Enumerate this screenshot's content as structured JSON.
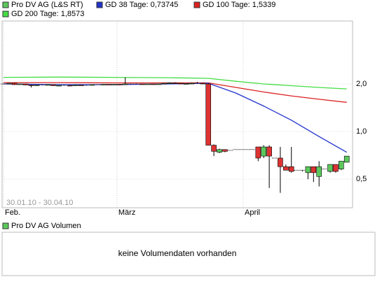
{
  "chart_data": {
    "type": "candlestick",
    "legend": [
      {
        "name": "Pro DV AG (L&S RT)",
        "color": "#5cc85c"
      },
      {
        "name": "GD 38 Tage: 0,73745",
        "color": "#2233cc"
      },
      {
        "name": "GD 100 Tage: 1,5339",
        "color": "#dd2222"
      },
      {
        "name": "GD 200 Tage: 1,8573",
        "color": "#44dd44"
      }
    ],
    "date_range": "30.01.10 - 30.04.10",
    "up_color": "#5cc85c",
    "down_color": "#dd3333",
    "open": [
      2.0,
      2.0,
      2.02,
      1.98,
      2.0,
      1.97,
      1.96,
      1.97,
      1.97,
      1.98,
      1.95,
      1.96,
      1.96,
      1.95,
      1.97,
      1.96,
      1.96,
      1.98,
      1.98,
      1.99,
      1.98,
      1.99,
      1.98,
      2.0,
      2.0,
      2.0,
      1.99,
      2.0,
      1.99,
      2.0,
      2.02,
      2.03,
      2.02,
      2.0,
      2.01,
      2.02,
      2.02,
      2.0,
      0.82,
      0.74,
      0.77,
      0.76,
      0.77,
      0.77,
      0.77,
      0.77,
      0.8,
      0.7,
      0.8,
      0.68,
      0.68,
      0.6,
      0.6,
      0.57,
      0.57,
      0.55,
      0.6,
      0.52,
      0.58,
      0.56,
      0.62,
      0.58,
      0.64
    ],
    "high": [
      2.01,
      2.03,
      2.04,
      2.0,
      2.01,
      1.98,
      1.98,
      1.98,
      1.99,
      1.99,
      1.97,
      1.97,
      1.97,
      1.98,
      1.98,
      1.97,
      1.99,
      1.99,
      2.0,
      1.99,
      2.0,
      2.0,
      2.2,
      2.01,
      2.01,
      2.01,
      2.0,
      2.01,
      2.01,
      2.03,
      2.05,
      2.05,
      2.03,
      2.02,
      2.04,
      2.06,
      2.03,
      2.02,
      0.83,
      0.78,
      0.77,
      0.76,
      0.77,
      0.77,
      0.77,
      0.77,
      0.8,
      0.82,
      0.82,
      0.68,
      0.8,
      0.62,
      0.8,
      0.57,
      0.57,
      0.6,
      0.6,
      0.65,
      0.58,
      0.62,
      0.62,
      0.65,
      0.7
    ],
    "low": [
      1.99,
      1.99,
      1.97,
      1.97,
      1.96,
      1.9,
      1.95,
      1.96,
      1.96,
      1.94,
      1.94,
      1.95,
      1.94,
      1.94,
      1.95,
      1.95,
      1.95,
      1.97,
      1.97,
      1.97,
      1.97,
      1.98,
      1.97,
      1.99,
      1.99,
      1.98,
      1.98,
      1.98,
      1.98,
      1.99,
      2.01,
      2.01,
      1.99,
      1.99,
      2.0,
      2.01,
      2.0,
      0.82,
      0.7,
      0.73,
      0.74,
      0.76,
      0.77,
      0.77,
      0.77,
      0.77,
      0.65,
      0.68,
      0.44,
      0.68,
      0.41,
      0.57,
      0.55,
      0.57,
      0.56,
      0.5,
      0.48,
      0.45,
      0.58,
      0.55,
      0.55,
      0.57,
      0.64
    ],
    "close": [
      2.0,
      2.02,
      1.98,
      2.0,
      1.97,
      1.96,
      1.97,
      1.97,
      1.98,
      1.95,
      1.96,
      1.96,
      1.95,
      1.97,
      1.96,
      1.96,
      1.98,
      1.98,
      1.99,
      1.98,
      1.99,
      1.98,
      2.0,
      2.0,
      2.0,
      1.99,
      2.0,
      1.99,
      2.0,
      2.02,
      2.03,
      2.02,
      2.0,
      2.01,
      2.02,
      2.02,
      2.01,
      0.82,
      0.75,
      0.77,
      0.75,
      0.76,
      0.77,
      0.77,
      0.77,
      0.77,
      0.68,
      0.8,
      0.7,
      0.68,
      0.6,
      0.57,
      0.56,
      0.57,
      0.57,
      0.6,
      0.55,
      0.6,
      0.58,
      0.62,
      0.56,
      0.65,
      0.7
    ],
    "lines": [
      {
        "color": "#44dd44",
        "x": [
          0,
          10,
          20,
          30,
          37,
          42,
          47,
          52,
          57,
          62
        ],
        "values": [
          2.2,
          2.21,
          2.2,
          2.19,
          2.17,
          2.08,
          2.0,
          1.95,
          1.9,
          1.86
        ]
      },
      {
        "color": "#dd2222",
        "x": [
          0,
          10,
          20,
          30,
          37,
          42,
          47,
          52,
          57,
          62
        ],
        "values": [
          2.04,
          2.04,
          2.03,
          2.03,
          2.03,
          1.9,
          1.78,
          1.68,
          1.6,
          1.53
        ]
      },
      {
        "color": "#2233cc",
        "x": [
          0,
          10,
          20,
          30,
          37,
          42,
          47,
          52,
          57,
          62
        ],
        "values": [
          2.0,
          1.98,
          1.98,
          2.0,
          2.02,
          1.75,
          1.45,
          1.18,
          0.93,
          0.74
        ]
      }
    ],
    "log_scale": true,
    "ylim": [
      0.33,
      5.0
    ],
    "yticks": [
      {
        "value": 0.5,
        "label": "0,5"
      },
      {
        "value": 1,
        "label": "1,0"
      },
      {
        "value": 2,
        "label": "2,0"
      }
    ],
    "xlim": [
      -0.25,
      63.05
    ],
    "xticks": [
      {
        "value": 0,
        "label": "Feb."
      },
      {
        "value": 20.5,
        "label": "März"
      },
      {
        "value": 43.3,
        "label": "April"
      }
    ],
    "grid": true,
    "volume_panel": {
      "legend": {
        "name": "Pro DV AG Volumen",
        "color": "#5cc85c"
      },
      "message": "keine Volumendaten vorhanden"
    }
  }
}
